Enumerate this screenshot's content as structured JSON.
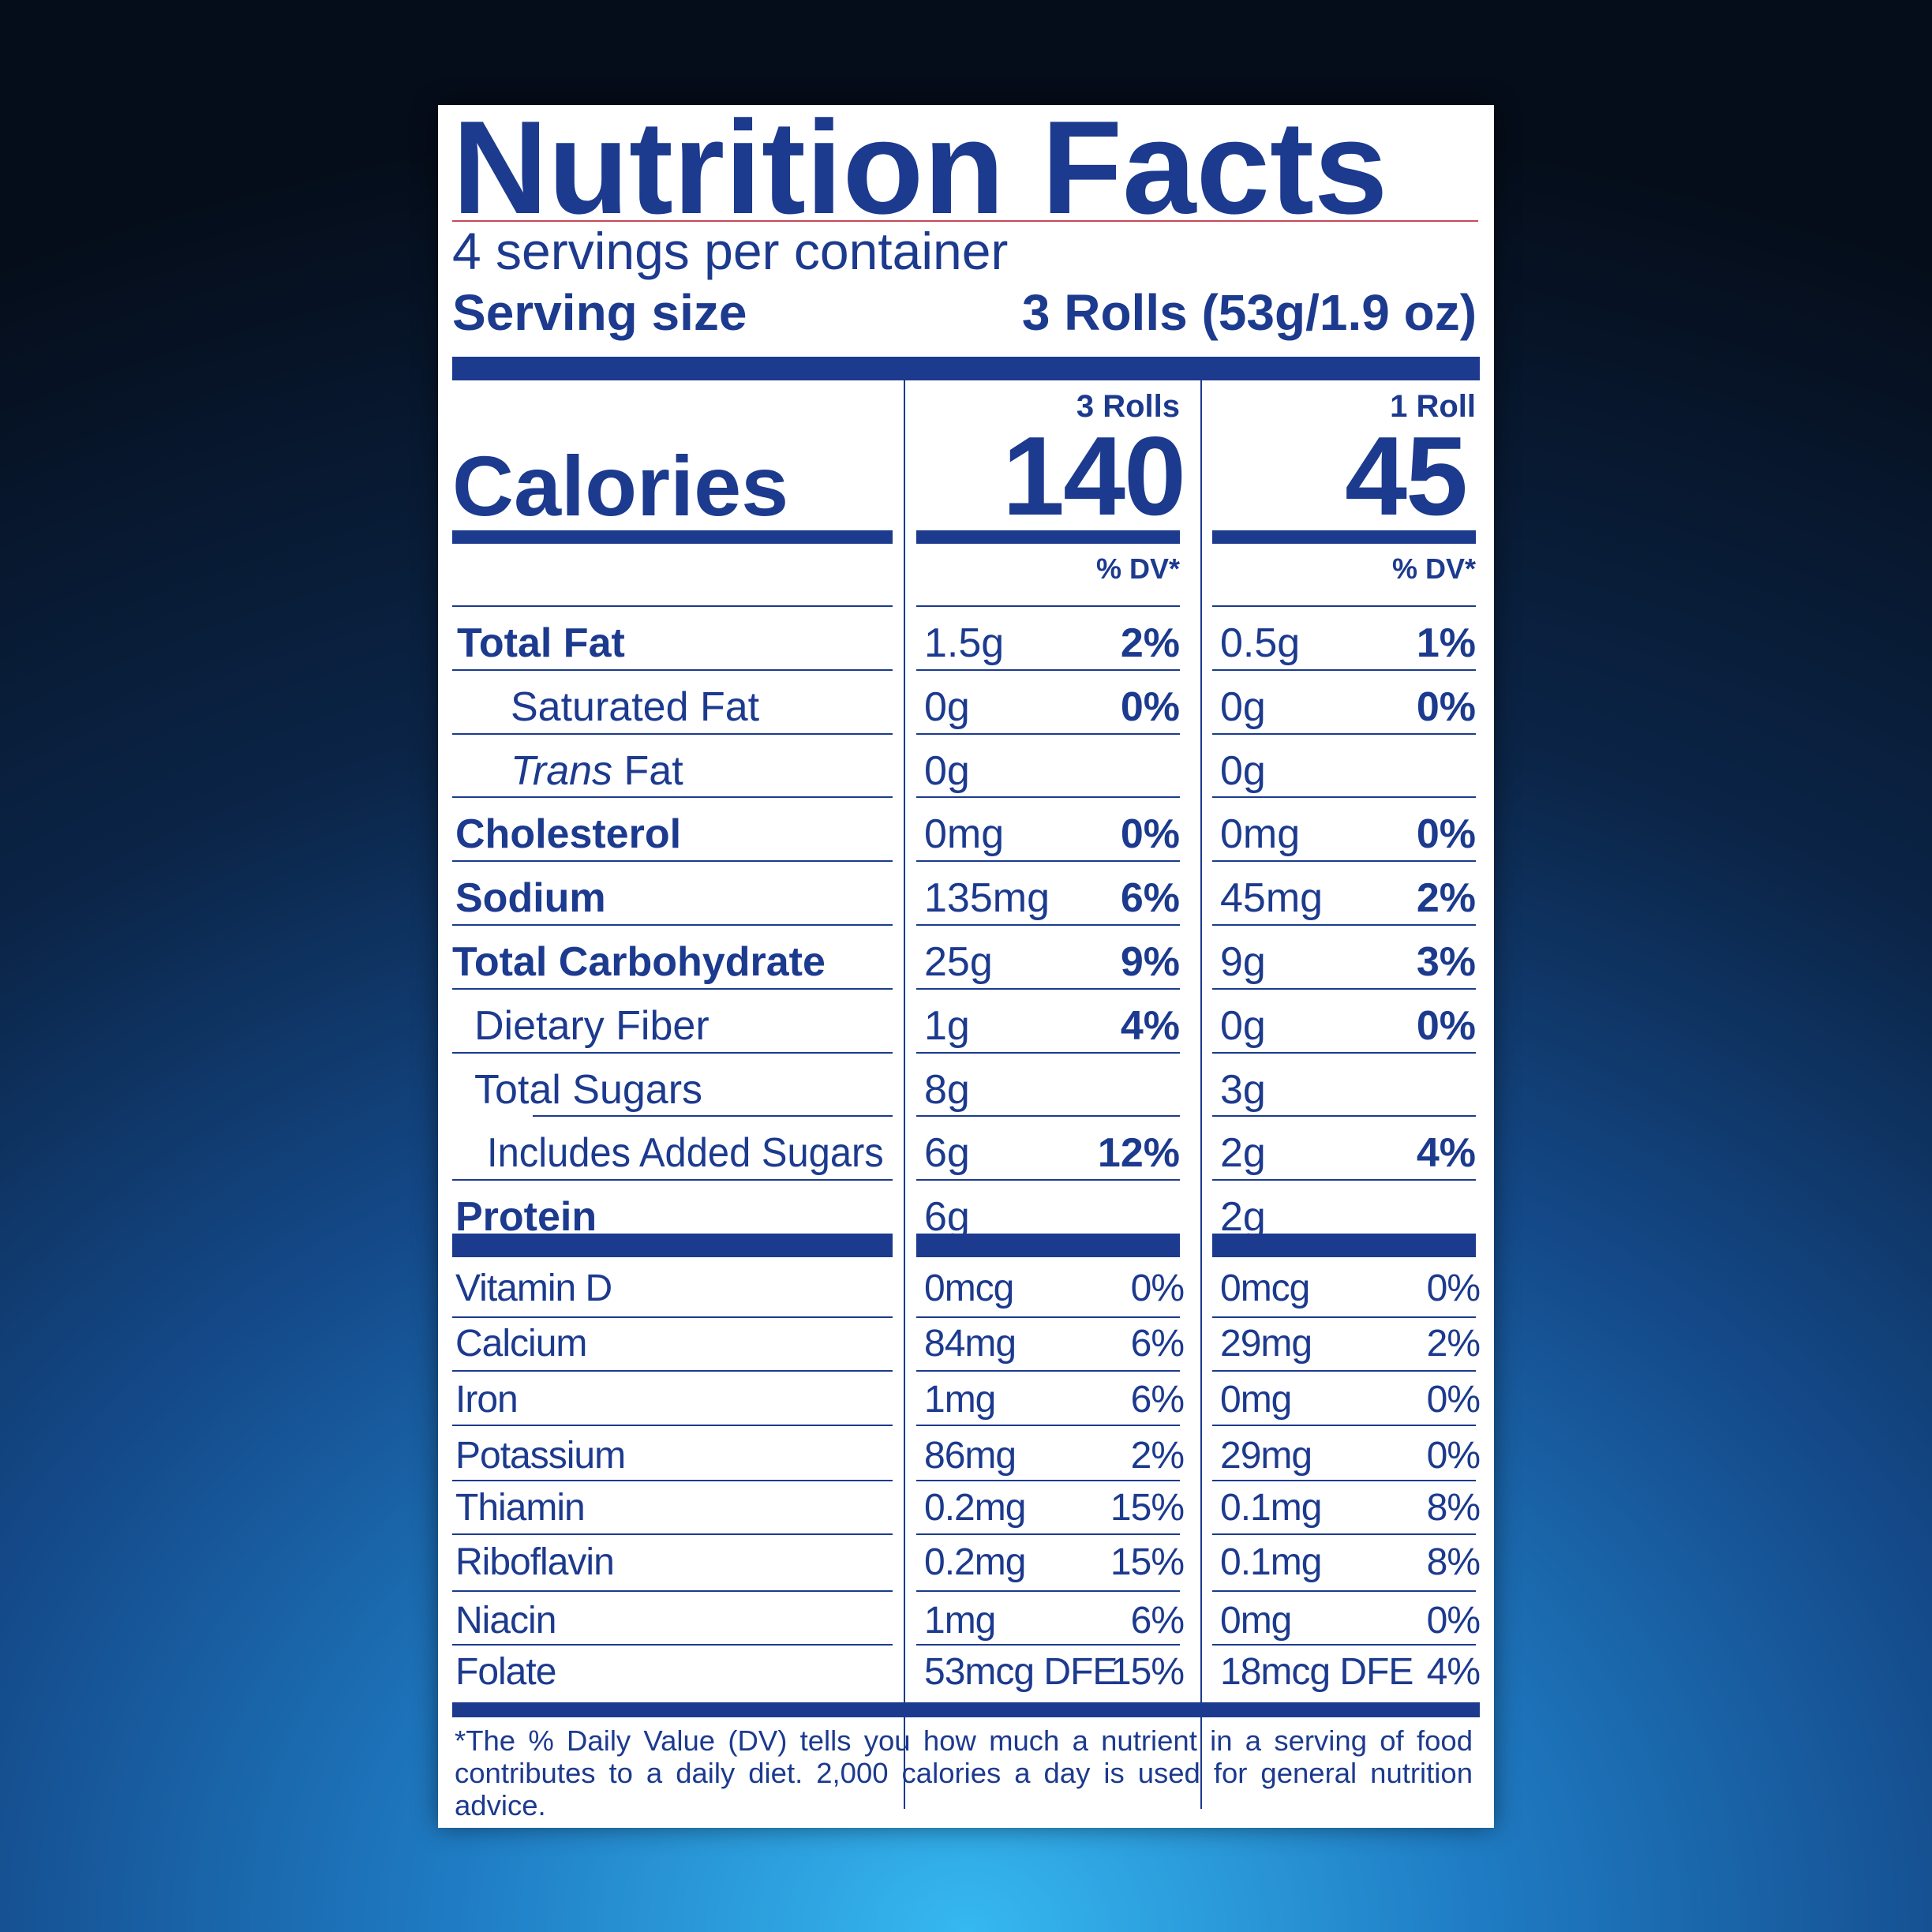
{
  "label": {
    "title": "Nutrition Facts",
    "servings_per_container": "4 servings per container",
    "serving_size_label": "Serving size",
    "serving_size_value": "3 Rolls (53g/1.9 oz)",
    "columns": [
      {
        "header": "3 Rolls",
        "calories": "140",
        "dv_header": "% DV*"
      },
      {
        "header": "1 Roll",
        "calories": "45",
        "dv_header": "% DV*"
      }
    ],
    "calories_label": "Calories",
    "nutrients": [
      {
        "name": "Total Fat",
        "a1": "1.5g",
        "p1": "2%",
        "a2": "0.5g",
        "p2": "1%"
      },
      {
        "name": "Saturated Fat",
        "a1": "0g",
        "p1": "0%",
        "a2": "0g",
        "p2": "0%"
      },
      {
        "name_italic": "Trans",
        "name": " Fat",
        "a1": "0g",
        "p1": "",
        "a2": "0g",
        "p2": ""
      },
      {
        "name": "Cholesterol",
        "a1": "0mg",
        "p1": "0%",
        "a2": "0mg",
        "p2": "0%"
      },
      {
        "name": "Sodium",
        "a1": "135mg",
        "p1": "6%",
        "a2": "45mg",
        "p2": "2%"
      },
      {
        "name": "Total Carbohydrate",
        "a1": "25g",
        "p1": "9%",
        "a2": "9g",
        "p2": "3%"
      },
      {
        "name": "Dietary Fiber",
        "a1": "1g",
        "p1": "4%",
        "a2": "0g",
        "p2": "0%"
      },
      {
        "name": "Total Sugars",
        "a1": "8g",
        "p1": "",
        "a2": "3g",
        "p2": ""
      },
      {
        "name": "Includes Added Sugars",
        "a1": "6g",
        "p1": "12%",
        "a2": "2g",
        "p2": "4%"
      },
      {
        "name": "Protein",
        "a1": "6g",
        "p1": "",
        "a2": "2g",
        "p2": ""
      }
    ],
    "vitamins": [
      {
        "name": "Vitamin D",
        "a1": "0mcg",
        "p1": "0%",
        "a2": "0mcg",
        "p2": "0%"
      },
      {
        "name": "Calcium",
        "a1": "84mg",
        "p1": "6%",
        "a2": "29mg",
        "p2": "2%"
      },
      {
        "name": "Iron",
        "a1": "1mg",
        "p1": "6%",
        "a2": "0mg",
        "p2": "0%"
      },
      {
        "name": "Potassium",
        "a1": "86mg",
        "p1": "2%",
        "a2": "29mg",
        "p2": "0%"
      },
      {
        "name": "Thiamin",
        "a1": "0.2mg",
        "p1": "15%",
        "a2": "0.1mg",
        "p2": "8%"
      },
      {
        "name": "Riboflavin",
        "a1": "0.2mg",
        "p1": "15%",
        "a2": "0.1mg",
        "p2": "8%"
      },
      {
        "name": "Niacin",
        "a1": "1mg",
        "p1": "6%",
        "a2": "0mg",
        "p2": "0%"
      },
      {
        "name": "Folate",
        "a1": "53mcg DFE",
        "p1": "15%",
        "a2": "18mcg DFE",
        "p2": "4%"
      }
    ],
    "footnote": "*The % Daily Value (DV) tells you how much a nutrient in a serving of food contributes to a daily diet. 2,000 calories a day is used for general nutrition advice."
  },
  "colors": {
    "ink": "#1c3a8e",
    "accent_line": "#c94a5a",
    "background_top": "#050d1a",
    "background_bottom": "#36b8f0"
  }
}
